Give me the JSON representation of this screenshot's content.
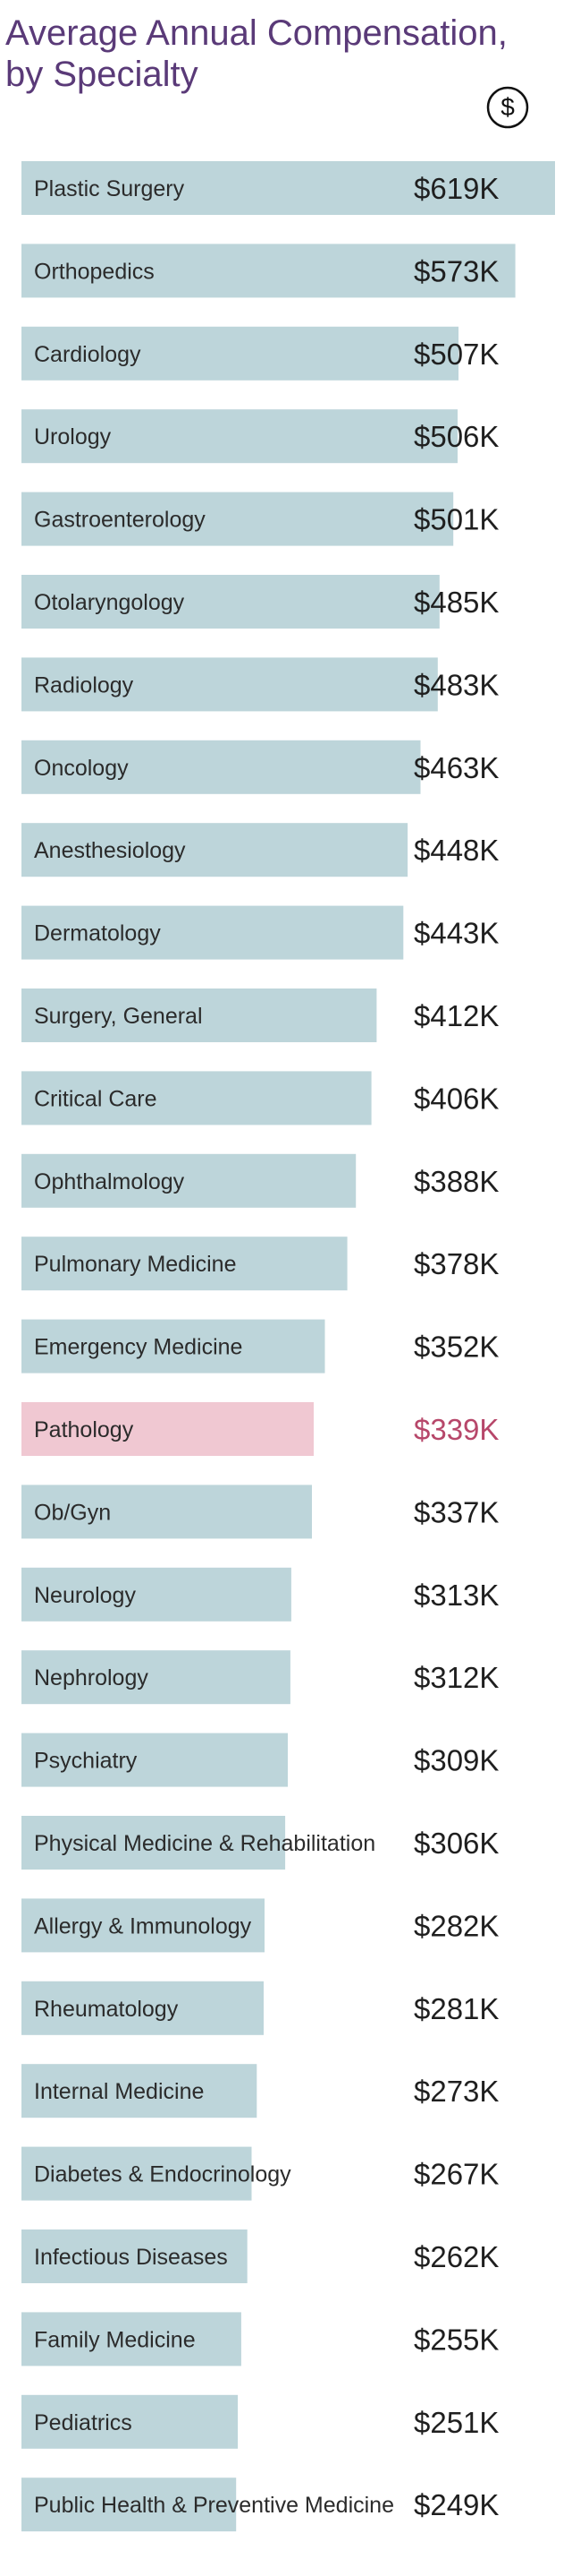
{
  "title": "Average Annual Compensation, by Specialty",
  "icon": "dollar-icon",
  "colors": {
    "bar_default": "#bdd5da",
    "bar_highlight": "#f0c8d2",
    "label_default": "#2b2b2b",
    "value_default": "#1f1f1f",
    "value_highlight": "#b7476a",
    "title": "#5a3a78"
  },
  "chart_data": {
    "type": "bar",
    "orientation": "horizontal",
    "title": "Average Annual Compensation, by Specialty",
    "xlabel": "",
    "ylabel": "",
    "xlim": [
      0,
      619
    ],
    "grid": false,
    "legend": "none",
    "highlighted_category": "Pathology",
    "categories": [
      "Plastic Surgery",
      "Orthopedics",
      "Cardiology",
      "Urology",
      "Gastroenterology",
      "Otolaryngology",
      "Radiology",
      "Oncology",
      "Anesthesiology",
      "Dermatology",
      "Surgery, General",
      "Critical Care",
      "Ophthalmology",
      "Pulmonary Medicine",
      "Emergency Medicine",
      "Pathology",
      "Ob/Gyn",
      "Neurology",
      "Nephrology",
      "Psychiatry",
      "Physical Medicine & Rehabilitation",
      "Allergy & Immunology",
      "Rheumatology",
      "Internal Medicine",
      "Diabetes & Endocrinology",
      "Infectious Diseases",
      "Family Medicine",
      "Pediatrics",
      "Public Health & Preventive Medicine"
    ],
    "values": [
      619,
      573,
      507,
      506,
      501,
      485,
      483,
      463,
      448,
      443,
      412,
      406,
      388,
      378,
      352,
      339,
      337,
      313,
      312,
      309,
      306,
      282,
      281,
      273,
      267,
      262,
      255,
      251,
      249
    ],
    "value_labels": [
      "$619K",
      "$573K",
      "$507K",
      "$506K",
      "$501K",
      "$485K",
      "$483K",
      "$463K",
      "$448K",
      "$443K",
      "$412K",
      "$406K",
      "$388K",
      "$378K",
      "$352K",
      "$339K",
      "$337K",
      "$313K",
      "$312K",
      "$309K",
      "$306K",
      "$282K",
      "$281K",
      "$273K",
      "$267K",
      "$262K",
      "$255K",
      "$251K",
      "$249K"
    ]
  }
}
